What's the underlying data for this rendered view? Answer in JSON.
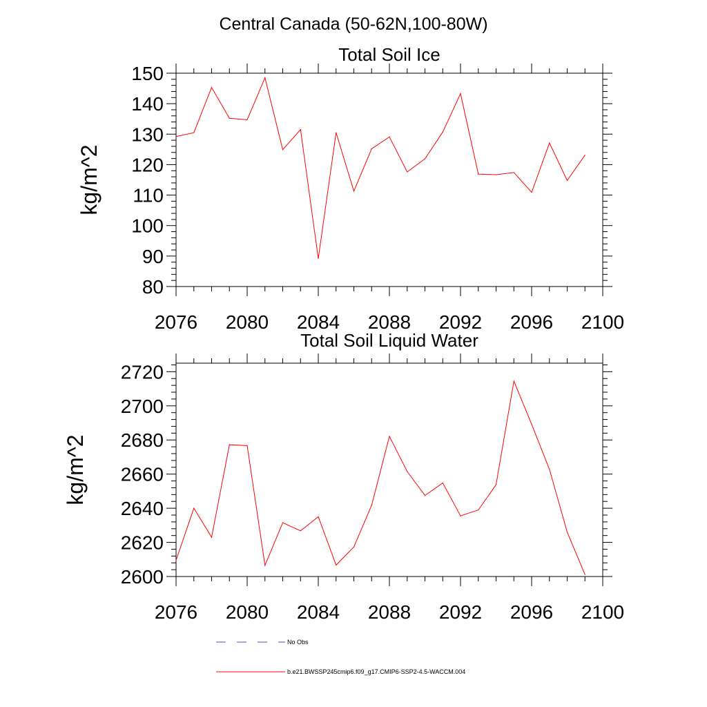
{
  "page_title": "Central Canada (50-62N,100-80W)",
  "legend": [
    {
      "label": "No Obs",
      "color": "#4a55a8",
      "dash": true
    },
    {
      "label": "b.e21.BWSSP245cmip6.f09_g17.CMIP6-SSP2-4.5-WACCM.004",
      "color": "#ff0000",
      "dash": false
    }
  ],
  "chart_data": [
    {
      "type": "line",
      "title": "Total Soil Ice",
      "ylabel": "kg/m^2",
      "xlabel": "",
      "xlim": [
        2076,
        2100
      ],
      "ylim": [
        80,
        150
      ],
      "xticks": [
        2076,
        2080,
        2084,
        2088,
        2092,
        2096,
        2100
      ],
      "yticks": [
        80,
        90,
        100,
        110,
        120,
        130,
        140,
        150
      ],
      "grid": false,
      "series": [
        {
          "name": "b.e21.BWSSP245cmip6.f09_g17.CMIP6-SSP2-4.5-WACCM.004",
          "color": "#ff0000",
          "x": [
            2076,
            2077,
            2078,
            2079,
            2080,
            2081,
            2082,
            2083,
            2084,
            2085,
            2086,
            2087,
            2088,
            2089,
            2090,
            2091,
            2092,
            2093,
            2094,
            2095,
            2096,
            2097,
            2098,
            2099
          ],
          "y": [
            129.2,
            130.5,
            145.3,
            135.2,
            134.7,
            148.5,
            124.9,
            131.5,
            89.2,
            130.5,
            111.3,
            125.2,
            129.1,
            117.6,
            121.9,
            130.7,
            143.3,
            116.9,
            116.7,
            117.4,
            110.9,
            127.1,
            114.8,
            123.1
          ]
        }
      ]
    },
    {
      "type": "line",
      "title": "Total Soil Liquid Water",
      "ylabel": "kg/m^2",
      "xlabel": "",
      "xlim": [
        2076,
        2100
      ],
      "ylim": [
        2600,
        2725
      ],
      "xticks": [
        2076,
        2080,
        2084,
        2088,
        2092,
        2096,
        2100
      ],
      "yticks": [
        2600,
        2620,
        2640,
        2660,
        2680,
        2700,
        2720
      ],
      "grid": false,
      "series": [
        {
          "name": "b.e21.BWSSP245cmip6.f09_g17.CMIP6-SSP2-4.5-WACCM.004",
          "color": "#ff0000",
          "x": [
            2076,
            2077,
            2078,
            2079,
            2080,
            2081,
            2082,
            2083,
            2084,
            2085,
            2086,
            2087,
            2088,
            2089,
            2090,
            2091,
            2092,
            2093,
            2094,
            2095,
            2096,
            2097,
            2098,
            2099
          ],
          "y": [
            2609.5,
            2640.0,
            2623.0,
            2677.2,
            2676.7,
            2606.5,
            2631.5,
            2626.8,
            2635.0,
            2606.7,
            2617.3,
            2641.8,
            2682.1,
            2661.5,
            2647.5,
            2654.8,
            2635.5,
            2639.0,
            2653.8,
            2714.5,
            2689.2,
            2662.8,
            2626.0,
            2601.1
          ]
        }
      ]
    }
  ]
}
